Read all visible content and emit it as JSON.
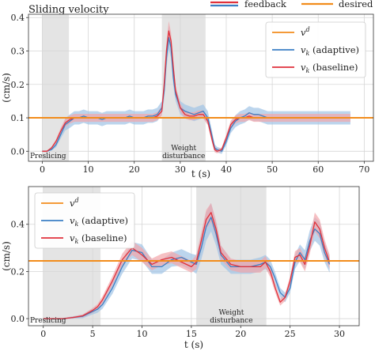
{
  "header": {
    "title": "Sliding velocity",
    "legend_feedback": "feedback",
    "legend_desired": "desired"
  },
  "colors": {
    "desired": "#f28c1b",
    "adaptive": "#3b7fc4",
    "baseline": "#e0313b",
    "adaptive_band": "#9fc3e6",
    "baseline_band": "#f2a5aa",
    "region": "#e4e4e4",
    "grid": "#d6d6d6"
  },
  "chart_data": [
    {
      "type": "line",
      "xlabel": "t (s)",
      "ylabel": "(cm/s)",
      "xlim": [
        -3,
        72
      ],
      "ylim": [
        -0.03,
        0.41
      ],
      "xticks": [
        0,
        10,
        20,
        30,
        40,
        50,
        60,
        70
      ],
      "yticks": [
        0.0,
        0.1,
        0.2,
        0.3,
        0.4
      ],
      "ytick_labels": [
        "0.0",
        "0.1",
        "0.2",
        "0.3",
        "0.4"
      ],
      "legend_position": "top-right",
      "desired_value": 0.1,
      "legend": [
        {
          "label": "v^d",
          "key": "desired"
        },
        {
          "label": "v_k (adaptive)",
          "key": "adaptive"
        },
        {
          "label": "v_k (baseline)",
          "key": "baseline"
        }
      ],
      "regions": [
        {
          "x0": 0,
          "x1": 5.8,
          "label_lines": [
            "Preslicing"
          ]
        },
        {
          "x0": 26,
          "x1": 35.5,
          "label_lines": [
            "Weight",
            "disturbance"
          ]
        }
      ],
      "series": [
        {
          "name": "v_k (adaptive)",
          "x": [
            0,
            1,
            2,
            3,
            4,
            5,
            6,
            7,
            8,
            9,
            10,
            11,
            12,
            13,
            14,
            15,
            16,
            17,
            18,
            19,
            20,
            21,
            22,
            23,
            24,
            25,
            26,
            26.5,
            27,
            27.5,
            28,
            28.5,
            29,
            30,
            31,
            32,
            33,
            34,
            35,
            36,
            37,
            37.5,
            38,
            39,
            40,
            41,
            42,
            43,
            44,
            45,
            46,
            47,
            48,
            49,
            50,
            51,
            52,
            53,
            54,
            55,
            56,
            57,
            58,
            59,
            60,
            61,
            62,
            63,
            64,
            65,
            66,
            67
          ],
          "y": [
            0.0,
            0.0,
            0.005,
            0.02,
            0.05,
            0.08,
            0.09,
            0.1,
            0.1,
            0.105,
            0.1,
            0.1,
            0.1,
            0.095,
            0.1,
            0.1,
            0.1,
            0.1,
            0.1,
            0.105,
            0.1,
            0.1,
            0.1,
            0.105,
            0.105,
            0.11,
            0.13,
            0.18,
            0.28,
            0.34,
            0.31,
            0.22,
            0.17,
            0.13,
            0.12,
            0.115,
            0.11,
            0.115,
            0.12,
            0.1,
            0.04,
            0.01,
            0.005,
            0.0,
            0.03,
            0.07,
            0.09,
            0.1,
            0.105,
            0.115,
            0.11,
            0.11,
            0.105,
            0.1,
            0.1,
            0.1,
            0.1,
            0.1,
            0.1,
            0.1,
            0.1,
            0.1,
            0.1,
            0.1,
            0.1,
            0.1,
            0.1,
            0.1,
            0.1,
            0.1,
            0.1,
            0.1
          ],
          "band": [
            0.002,
            0.002,
            0.003,
            0.008,
            0.012,
            0.018,
            0.02,
            0.02,
            0.02,
            0.02,
            0.02,
            0.02,
            0.02,
            0.02,
            0.02,
            0.02,
            0.02,
            0.02,
            0.02,
            0.02,
            0.02,
            0.02,
            0.02,
            0.02,
            0.02,
            0.02,
            0.02,
            0.025,
            0.03,
            0.035,
            0.03,
            0.025,
            0.02,
            0.02,
            0.02,
            0.02,
            0.02,
            0.02,
            0.02,
            0.02,
            0.015,
            0.01,
            0.008,
            0.008,
            0.012,
            0.015,
            0.018,
            0.02,
            0.02,
            0.02,
            0.02,
            0.02,
            0.02,
            0.02,
            0.02,
            0.02,
            0.02,
            0.02,
            0.02,
            0.02,
            0.02,
            0.02,
            0.02,
            0.02,
            0.02,
            0.02,
            0.02,
            0.02,
            0.02,
            0.02,
            0.02,
            0.02
          ]
        },
        {
          "name": "v_k (baseline)",
          "x": [
            0,
            1,
            2,
            3,
            4,
            5,
            6,
            7,
            8,
            9,
            10,
            11,
            12,
            13,
            14,
            15,
            16,
            17,
            18,
            19,
            20,
            21,
            22,
            23,
            24,
            25,
            26,
            26.5,
            27,
            27.5,
            28,
            28.5,
            29,
            30,
            31,
            32,
            33,
            34,
            35,
            36,
            37,
            37.5,
            38,
            39,
            40,
            41,
            42,
            43,
            44,
            45,
            46,
            47,
            48,
            49,
            50,
            51,
            52,
            53,
            54,
            55,
            56,
            57,
            58,
            59,
            60,
            61,
            62,
            63,
            64,
            65,
            66,
            67
          ],
          "y": [
            0.0,
            0.0,
            0.01,
            0.03,
            0.06,
            0.085,
            0.095,
            0.1,
            0.1,
            0.1,
            0.1,
            0.1,
            0.1,
            0.1,
            0.1,
            0.1,
            0.1,
            0.1,
            0.1,
            0.1,
            0.1,
            0.1,
            0.1,
            0.1,
            0.1,
            0.105,
            0.12,
            0.2,
            0.3,
            0.36,
            0.33,
            0.25,
            0.18,
            0.13,
            0.11,
            0.105,
            0.105,
            0.11,
            0.11,
            0.09,
            0.03,
            0.005,
            0.0,
            0.005,
            0.04,
            0.08,
            0.095,
            0.1,
            0.1,
            0.105,
            0.1,
            0.1,
            0.1,
            0.1,
            0.1,
            0.1,
            0.1,
            0.1,
            0.1,
            0.1,
            0.1,
            0.1,
            0.1,
            0.1,
            0.1,
            0.1,
            0.1,
            0.1,
            0.1,
            0.1,
            0.1,
            0.1
          ],
          "band": [
            0.002,
            0.002,
            0.003,
            0.006,
            0.01,
            0.012,
            0.012,
            0.012,
            0.012,
            0.012,
            0.012,
            0.012,
            0.012,
            0.012,
            0.012,
            0.012,
            0.012,
            0.012,
            0.012,
            0.012,
            0.012,
            0.012,
            0.012,
            0.012,
            0.012,
            0.012,
            0.015,
            0.02,
            0.025,
            0.03,
            0.025,
            0.02,
            0.015,
            0.012,
            0.012,
            0.012,
            0.012,
            0.012,
            0.012,
            0.012,
            0.01,
            0.008,
            0.006,
            0.006,
            0.01,
            0.012,
            0.012,
            0.012,
            0.012,
            0.012,
            0.012,
            0.012,
            0.012,
            0.012,
            0.012,
            0.012,
            0.012,
            0.012,
            0.012,
            0.012,
            0.012,
            0.012,
            0.012,
            0.012,
            0.012,
            0.012,
            0.012,
            0.012,
            0.012,
            0.012,
            0.012,
            0.012
          ]
        }
      ]
    },
    {
      "type": "line",
      "xlabel": "t (s)",
      "ylabel": "(cm/s)",
      "xlim": [
        -1.5,
        32
      ],
      "ylim": [
        -0.03,
        0.56
      ],
      "xticks": [
        0,
        5,
        10,
        15,
        20,
        25,
        30
      ],
      "yticks": [
        0.0,
        0.2,
        0.4
      ],
      "ytick_labels": [
        "0.0",
        "0.2",
        "0.4"
      ],
      "legend_position": "top-left",
      "desired_value": 0.245,
      "legend": [
        {
          "label": "v^d",
          "key": "desired"
        },
        {
          "label": "v_k (adaptive)",
          "key": "adaptive"
        },
        {
          "label": "v_k (baseline)",
          "key": "baseline"
        }
      ],
      "regions": [
        {
          "x0": 0,
          "x1": 5.8,
          "label_lines": [
            "Preslicing"
          ]
        },
        {
          "x0": 15.5,
          "x1": 22.6,
          "label_lines": [
            "Weight",
            "disturbance"
          ]
        }
      ],
      "series": [
        {
          "name": "v_k (adaptive)",
          "x": [
            0,
            1,
            2,
            3,
            4,
            5,
            5.5,
            6,
            7,
            8,
            9,
            10,
            11,
            12,
            13,
            14,
            15,
            15.5,
            16,
            16.5,
            17,
            17.5,
            18,
            19,
            20,
            21,
            22,
            22.5,
            23,
            23.5,
            24,
            24.5,
            25,
            25.5,
            26,
            26.5,
            27,
            27.5,
            28,
            28.5,
            29
          ],
          "y": [
            0.0,
            0.0,
            0.0,
            0.005,
            0.01,
            0.03,
            0.04,
            0.06,
            0.13,
            0.22,
            0.29,
            0.28,
            0.22,
            0.22,
            0.25,
            0.26,
            0.24,
            0.23,
            0.3,
            0.39,
            0.43,
            0.36,
            0.27,
            0.22,
            0.22,
            0.22,
            0.23,
            0.24,
            0.22,
            0.17,
            0.11,
            0.09,
            0.13,
            0.24,
            0.28,
            0.25,
            0.33,
            0.38,
            0.36,
            0.28,
            0.23
          ],
          "band": [
            0.003,
            0.003,
            0.003,
            0.005,
            0.008,
            0.012,
            0.015,
            0.018,
            0.025,
            0.03,
            0.035,
            0.035,
            0.03,
            0.03,
            0.03,
            0.035,
            0.035,
            0.04,
            0.05,
            0.06,
            0.06,
            0.05,
            0.04,
            0.03,
            0.03,
            0.03,
            0.03,
            0.03,
            0.03,
            0.025,
            0.02,
            0.02,
            0.02,
            0.03,
            0.035,
            0.04,
            0.045,
            0.05,
            0.05,
            0.04,
            0.035
          ]
        },
        {
          "name": "v_k (baseline)",
          "x": [
            0,
            1,
            2,
            3,
            4,
            5,
            5.5,
            6,
            7,
            8,
            9,
            10,
            11,
            12,
            13,
            14,
            15,
            15.5,
            16,
            16.5,
            17,
            17.5,
            18,
            19,
            20,
            21,
            22,
            22.5,
            23,
            23.5,
            24,
            24.5,
            25,
            25.5,
            26,
            26.5,
            27,
            27.5,
            28,
            28.5,
            29
          ],
          "y": [
            0.0,
            0.0,
            0.0,
            0.005,
            0.012,
            0.035,
            0.05,
            0.08,
            0.16,
            0.25,
            0.3,
            0.27,
            0.23,
            0.25,
            0.26,
            0.24,
            0.22,
            0.24,
            0.33,
            0.42,
            0.45,
            0.38,
            0.28,
            0.23,
            0.22,
            0.22,
            0.22,
            0.24,
            0.2,
            0.13,
            0.07,
            0.09,
            0.16,
            0.26,
            0.27,
            0.23,
            0.31,
            0.41,
            0.38,
            0.3,
            0.24
          ],
          "band": [
            0.003,
            0.003,
            0.003,
            0.004,
            0.006,
            0.01,
            0.012,
            0.015,
            0.02,
            0.025,
            0.03,
            0.03,
            0.025,
            0.025,
            0.025,
            0.025,
            0.025,
            0.03,
            0.035,
            0.04,
            0.04,
            0.035,
            0.03,
            0.025,
            0.025,
            0.025,
            0.025,
            0.025,
            0.025,
            0.02,
            0.015,
            0.015,
            0.02,
            0.025,
            0.03,
            0.03,
            0.035,
            0.04,
            0.04,
            0.035,
            0.03
          ]
        }
      ]
    }
  ]
}
